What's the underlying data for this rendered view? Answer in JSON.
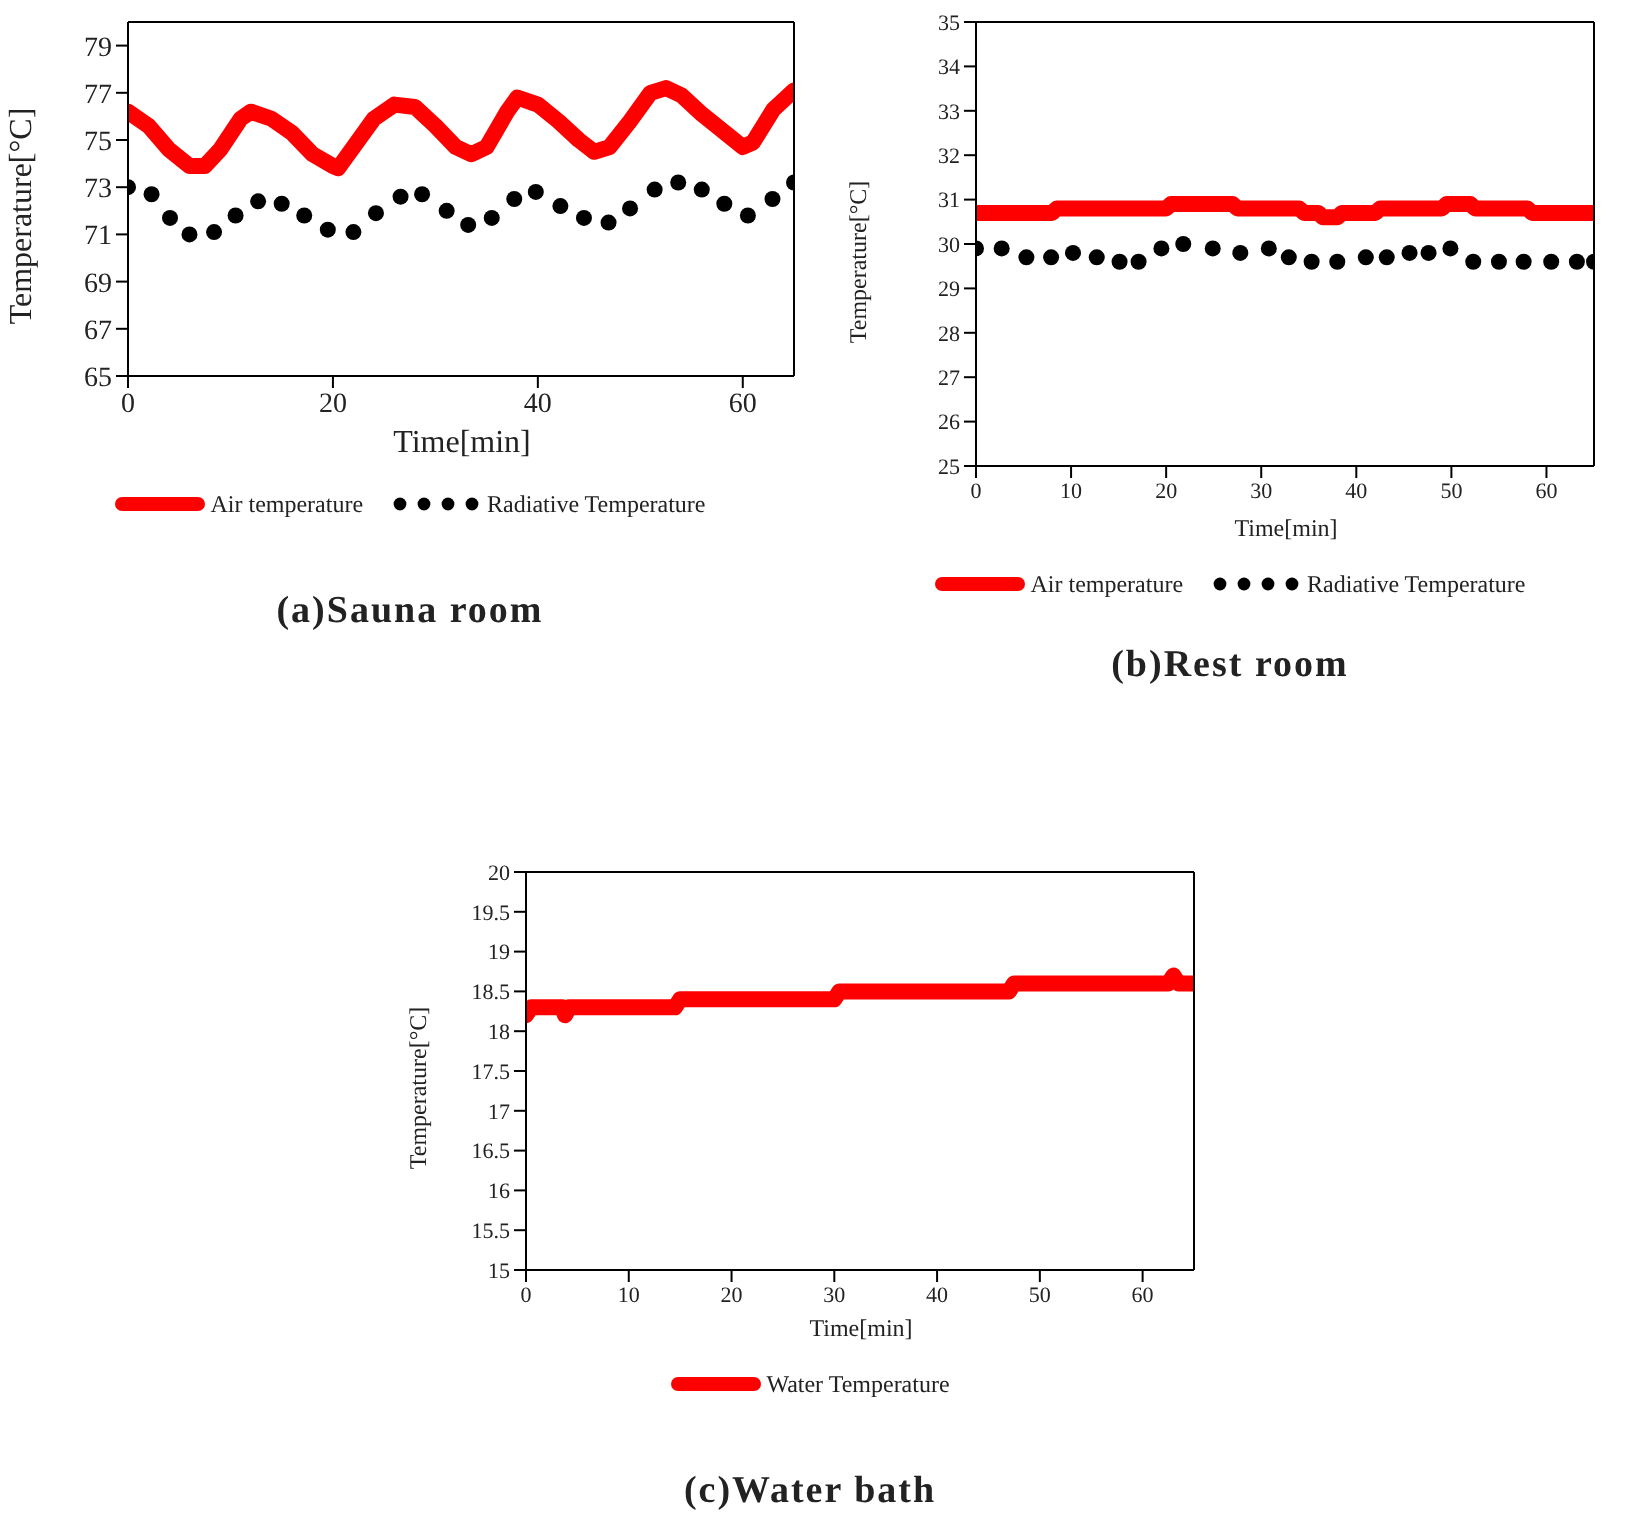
{
  "chart_data": [
    {
      "type": "line",
      "title": "(a)Sauna room",
      "xlabel": "Time[min]",
      "ylabel": "Temperature[°C]",
      "xlim": [
        0,
        65
      ],
      "xticks": [
        0,
        20,
        40,
        60
      ],
      "ylim": [
        65,
        80
      ],
      "yticks": [
        65,
        67,
        69,
        71,
        73,
        75,
        77,
        79
      ],
      "legend": "bottom",
      "series": [
        {
          "name": "Air temperature",
          "type": "line",
          "color": "#ff0000",
          "line_style": "solid",
          "x": [
            0,
            2,
            4,
            6,
            7.5,
            9,
            11,
            12,
            14,
            16,
            18,
            20,
            20.5,
            22,
            24,
            26,
            28,
            30,
            32,
            33.5,
            35,
            37,
            38,
            40,
            42,
            44,
            45.5,
            47,
            49,
            51,
            52.5,
            54,
            56,
            58,
            60,
            61,
            63,
            65
          ],
          "values": [
            76.2,
            75.6,
            74.6,
            73.9,
            73.9,
            74.6,
            75.9,
            76.2,
            75.9,
            75.3,
            74.4,
            73.9,
            73.8,
            74.7,
            75.9,
            76.5,
            76.4,
            75.6,
            74.7,
            74.4,
            74.7,
            76.2,
            76.8,
            76.5,
            75.8,
            75.0,
            74.5,
            74.7,
            75.8,
            77.0,
            77.2,
            76.9,
            76.1,
            75.4,
            74.7,
            74.9,
            76.3,
            77.1
          ]
        },
        {
          "name": "Radiative Temperature",
          "type": "scatter",
          "marker": "circle",
          "color": "#000000",
          "x": [
            0,
            2.3,
            4.1,
            6.0,
            8.4,
            10.5,
            12.7,
            15.0,
            17.2,
            19.5,
            22.0,
            24.2,
            26.6,
            28.7,
            31.1,
            33.2,
            35.5,
            37.7,
            39.8,
            42.2,
            44.5,
            46.9,
            49.0,
            51.4,
            53.7,
            56.0,
            58.2,
            60.5,
            62.9,
            65
          ],
          "values": [
            73.0,
            72.7,
            71.7,
            71.0,
            71.1,
            71.8,
            72.4,
            72.3,
            71.8,
            71.2,
            71.1,
            71.9,
            72.6,
            72.7,
            72.0,
            71.4,
            71.7,
            72.5,
            72.8,
            72.2,
            71.7,
            71.5,
            72.1,
            72.9,
            73.2,
            72.9,
            72.3,
            71.8,
            72.5,
            73.2
          ]
        }
      ]
    },
    {
      "type": "line",
      "title": "(b)Rest room",
      "xlabel": "Time[min]",
      "ylabel": "Temperature[°C]",
      "xlim": [
        0,
        65
      ],
      "xticks": [
        0,
        10,
        20,
        30,
        40,
        50,
        60
      ],
      "ylim": [
        25,
        35
      ],
      "yticks": [
        25,
        26,
        27,
        28,
        29,
        30,
        31,
        32,
        33,
        34,
        35
      ],
      "legend": "bottom",
      "series": [
        {
          "name": "Air temperature",
          "type": "line",
          "color": "#ff0000",
          "line_style": "solid",
          "x": [
            0,
            8,
            8.5,
            20,
            20.5,
            27,
            27.5,
            34,
            34.5,
            36,
            36.5,
            38,
            38.5,
            42,
            42.5,
            49,
            49.5,
            52,
            52.5,
            58,
            58.5,
            65
          ],
          "values": [
            30.7,
            30.7,
            30.8,
            30.8,
            30.9,
            30.9,
            30.8,
            30.8,
            30.7,
            30.7,
            30.6,
            30.6,
            30.7,
            30.7,
            30.8,
            30.8,
            30.9,
            30.9,
            30.8,
            30.8,
            30.7,
            30.7
          ]
        },
        {
          "name": "Radiative Temperature",
          "type": "scatter",
          "marker": "circle",
          "color": "#000000",
          "x": [
            0,
            2.7,
            5.3,
            7.9,
            10.2,
            12.7,
            15.1,
            17.1,
            19.5,
            21.8,
            24.9,
            27.8,
            30.8,
            32.9,
            35.3,
            38.0,
            41.0,
            43.2,
            45.6,
            47.6,
            49.9,
            52.3,
            55.0,
            57.6,
            60.5,
            63.2,
            65
          ],
          "values": [
            29.9,
            29.9,
            29.7,
            29.7,
            29.8,
            29.7,
            29.6,
            29.6,
            29.9,
            30.0,
            29.9,
            29.8,
            29.9,
            29.7,
            29.6,
            29.6,
            29.7,
            29.7,
            29.8,
            29.8,
            29.9,
            29.6,
            29.6,
            29.6,
            29.6,
            29.6,
            29.6
          ]
        }
      ]
    },
    {
      "type": "line",
      "title": "(c)Water bath",
      "xlabel": "Time[min]",
      "ylabel": "Temperature[°C]",
      "xlim": [
        0,
        65
      ],
      "xticks": [
        0,
        10,
        20,
        30,
        40,
        50,
        60
      ],
      "ylim": [
        15,
        20
      ],
      "yticks": [
        15,
        15.5,
        16,
        16.5,
        17,
        17.5,
        18,
        18.5,
        19,
        19.5,
        20
      ],
      "legend": "bottom",
      "series": [
        {
          "name": "Water Temperature",
          "type": "line",
          "color": "#ff0000",
          "line_style": "solid",
          "x": [
            0,
            0.5,
            3.5,
            3.8,
            4.2,
            14.5,
            15,
            19,
            30,
            30.5,
            47,
            47.5,
            62.5,
            63,
            63.5,
            65
          ],
          "values": [
            18.2,
            18.3,
            18.3,
            18.2,
            18.3,
            18.3,
            18.4,
            18.4,
            18.4,
            18.5,
            18.5,
            18.6,
            18.6,
            18.7,
            18.6,
            18.6
          ]
        }
      ]
    }
  ]
}
